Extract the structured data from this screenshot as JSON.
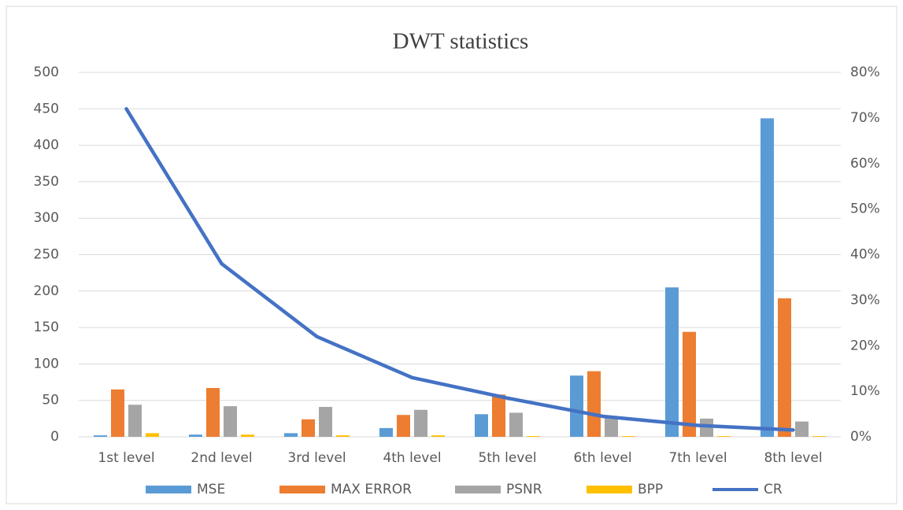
{
  "chart_data": {
    "type": "bar_line",
    "title": "DWT statistics",
    "categories": [
      "1st level",
      "2nd level",
      "3rd level",
      "4th level",
      "5th level",
      "6th level",
      "7th level",
      "8th level"
    ],
    "series": [
      {
        "name": "MSE",
        "color": "#5b9bd5",
        "type": "bar",
        "values": [
          2,
          3,
          5,
          12,
          31,
          84,
          205,
          437
        ]
      },
      {
        "name": "MAX ERROR",
        "color": "#ed7d31",
        "type": "bar",
        "values": [
          65,
          67,
          24,
          30,
          58,
          90,
          144,
          190
        ]
      },
      {
        "name": "PSNR",
        "color": "#a5a5a5",
        "type": "bar",
        "values": [
          44,
          42,
          41,
          37,
          33,
          28,
          25,
          21
        ]
      },
      {
        "name": "BPP",
        "color": "#ffc000",
        "type": "bar",
        "values": [
          5,
          3,
          2,
          2,
          1,
          1,
          1,
          1
        ]
      },
      {
        "name": "CR",
        "color": "#4472c4",
        "type": "line",
        "axis": "y2",
        "values": [
          72,
          38,
          22,
          13,
          8.5,
          4.5,
          2.5,
          1.5
        ]
      }
    ],
    "ylim": [
      0,
      500
    ],
    "yticks": [
      0,
      50,
      100,
      150,
      200,
      250,
      300,
      350,
      400,
      450,
      500
    ],
    "y2lim": [
      0,
      80
    ],
    "y2ticks": [
      {
        "value": 0,
        "label": "0%"
      },
      {
        "value": 10,
        "label": "10%"
      },
      {
        "value": 20,
        "label": "20%"
      },
      {
        "value": 30,
        "label": "30%"
      },
      {
        "value": 40,
        "label": "40%"
      },
      {
        "value": 50,
        "label": "50%"
      },
      {
        "value": 60,
        "label": "60%"
      },
      {
        "value": 70,
        "label": "70%"
      },
      {
        "value": 80,
        "label": "80%"
      }
    ],
    "grid": true,
    "legend": "bottom"
  }
}
